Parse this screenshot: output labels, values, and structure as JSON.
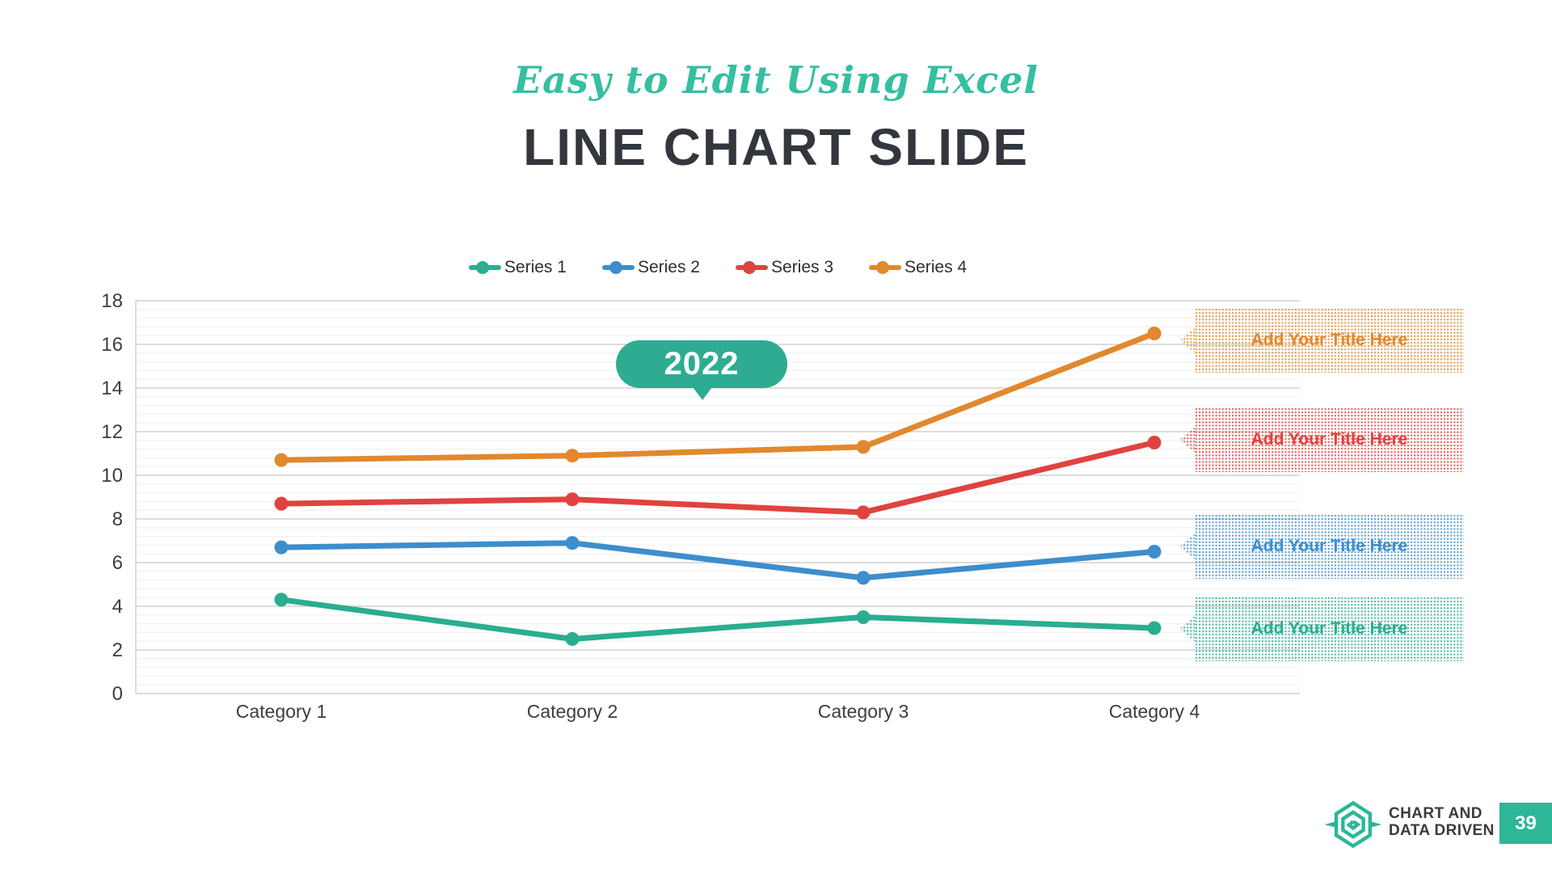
{
  "slide": {
    "subtitle": "Easy to Edit Using Excel",
    "title": "LINE CHART SLIDE",
    "year_callout": "2022"
  },
  "colors": {
    "accent_teal": "#2eac92",
    "brand_teal": "#2cb796",
    "title_dark": "#33373d",
    "axis_text": "#3d3d3d",
    "grid_major": "#dcdcdc",
    "grid_minor": "#f2f2f2",
    "series1": "#2aae8f",
    "series2": "#3d8ecd",
    "series3": "#e0433f",
    "series4": "#e2882e"
  },
  "chart_data": {
    "type": "line",
    "title": "LINE CHART SLIDE",
    "categories": [
      "Category 1",
      "Category 2",
      "Category 3",
      "Category 4"
    ],
    "series": [
      {
        "name": "Series 1",
        "color": "#2aae8f",
        "values": [
          4.3,
          2.5,
          3.5,
          3.0
        ]
      },
      {
        "name": "Series 2",
        "color": "#3d8ecd",
        "values": [
          6.7,
          6.9,
          5.3,
          6.5
        ]
      },
      {
        "name": "Series 3",
        "color": "#e0433f",
        "values": [
          8.7,
          8.9,
          8.3,
          11.5
        ]
      },
      {
        "name": "Series 4",
        "color": "#e2882e",
        "values": [
          10.7,
          10.9,
          11.3,
          16.5
        ]
      }
    ],
    "xlabel": "",
    "ylabel": "",
    "ylim": [
      0,
      18
    ],
    "y_tick_step": 2,
    "y_minor_step": 0.4,
    "y_ticks": [
      "0",
      "2",
      "4",
      "6",
      "8",
      "10",
      "12",
      "14",
      "16",
      "18"
    ],
    "grid": true,
    "legend_position": "top",
    "annotation": "2022"
  },
  "callouts": [
    {
      "label": "Add Your Title Here",
      "color": "#e2882e"
    },
    {
      "label": "Add Your Title Here",
      "color": "#e0433f"
    },
    {
      "label": "Add Your Title Here",
      "color": "#3d8ecd"
    },
    {
      "label": "Add Your Title Here",
      "color": "#2aae8f"
    }
  ],
  "footer": {
    "brand_line1": "CHART AND",
    "brand_line2": "DATA DRIVEN",
    "logo_icon": "hexagon-spiral-logo",
    "page_number": "39"
  }
}
